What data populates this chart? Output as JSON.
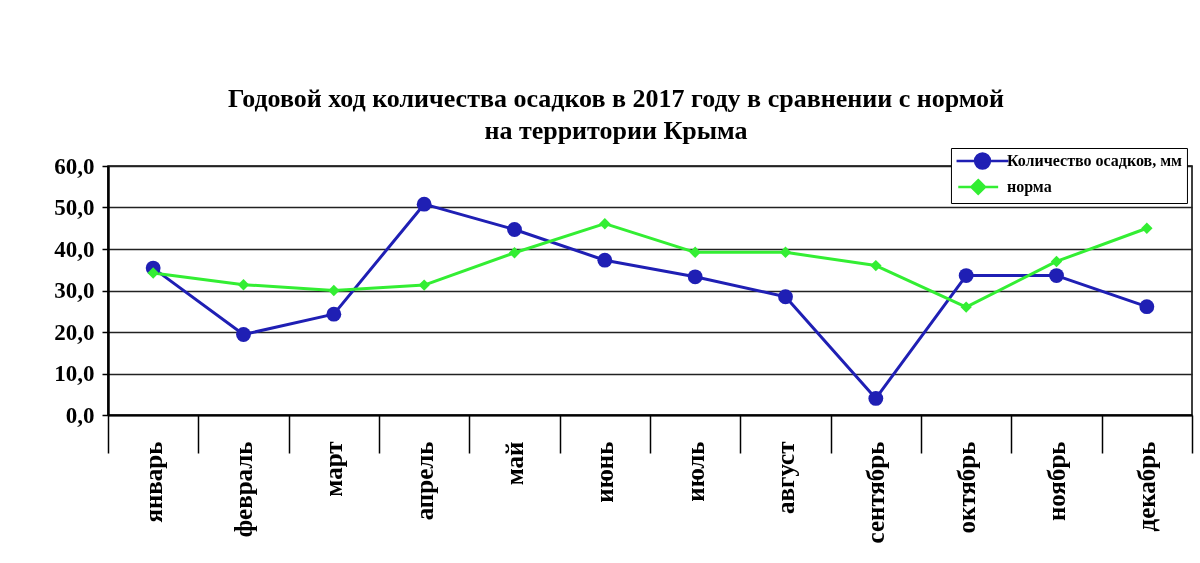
{
  "chart_data": {
    "type": "line",
    "title": "Годовой ход количества осадков в 2017 году в сравнении с нормой\nна территории Крыма",
    "categories": [
      "январь",
      "февраль",
      "март",
      "апрель",
      "май",
      "июнь",
      "июль",
      "август",
      "сентябрь",
      "октябрь",
      "ноябрь",
      "декабрь"
    ],
    "series": [
      {
        "name": "Количество осадков, мм",
        "color": "#1f1fb4",
        "marker": "circle",
        "values": [
          35.4,
          19.4,
          24.3,
          50.8,
          44.7,
          37.3,
          33.3,
          28.5,
          4.0,
          33.6,
          33.6,
          26.1
        ]
      },
      {
        "name": "норма",
        "color": "#33ee33",
        "marker": "diamond",
        "values": [
          34.2,
          31.4,
          30.0,
          31.3,
          39.1,
          46.1,
          39.2,
          39.2,
          36.0,
          26.0,
          37.0,
          45.0
        ]
      }
    ],
    "ylim": [
      0,
      60
    ],
    "yticks": [
      {
        "value": 0,
        "label": "0,0"
      },
      {
        "value": 10,
        "label": "10,0"
      },
      {
        "value": 20,
        "label": "20,0"
      },
      {
        "value": 30,
        "label": "30,0"
      },
      {
        "value": 40,
        "label": "40,0"
      },
      {
        "value": 50,
        "label": "50,0"
      },
      {
        "value": 60,
        "label": "60,0"
      }
    ],
    "grid": "y",
    "legend": "top right",
    "line_style": "solid"
  }
}
